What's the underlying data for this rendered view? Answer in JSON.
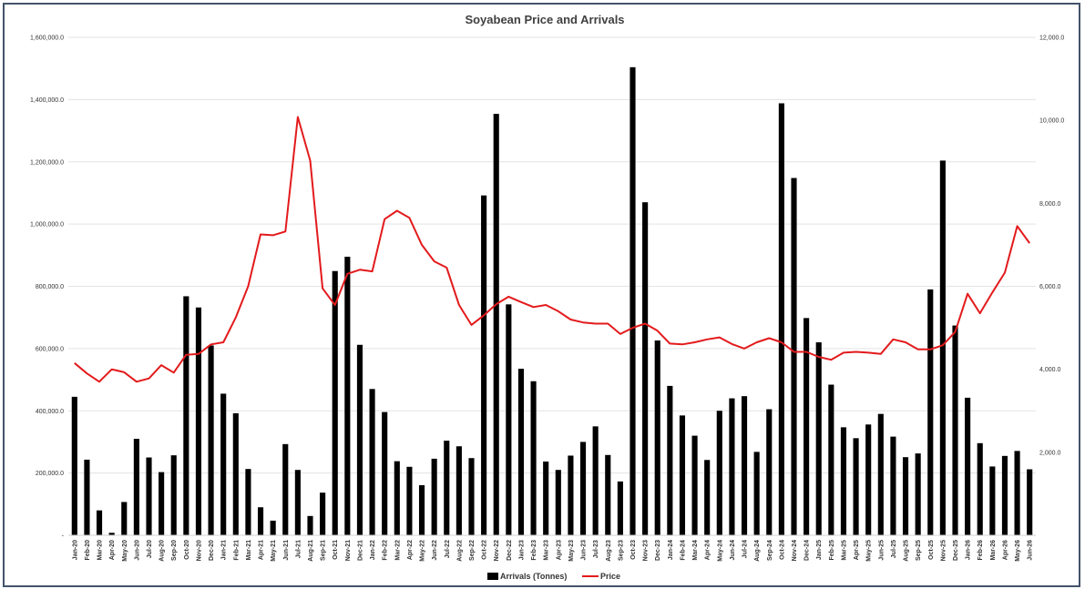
{
  "colors": {
    "bars": "#000000",
    "line": "#e31a1c",
    "grid": "#e3e3e3",
    "border": "#44546a"
  },
  "chart_data": {
    "type": "bar",
    "title": "Soyabean Price and Arrivals",
    "grid": true,
    "legend_position": "bottom",
    "categories": [
      "Jan-20",
      "Feb-20",
      "Mar-20",
      "Apr-20",
      "May-20",
      "Jun-20",
      "Jul-20",
      "Aug-20",
      "Sep-20",
      "Oct-20",
      "Nov-20",
      "Dec-20",
      "Jan-21",
      "Feb-21",
      "Mar-21",
      "Apr-21",
      "May-21",
      "Jun-21",
      "Jul-21",
      "Aug-21",
      "Sep-21",
      "Oct-21",
      "Nov-21",
      "Dec-21",
      "Jan-22",
      "Feb-22",
      "Mar-22",
      "Apr-22",
      "May-22",
      "Jun-22",
      "Jul-22",
      "Aug-22",
      "Sep-22",
      "Oct-22",
      "Nov-22",
      "Dec-22",
      "Jan-23",
      "Feb-23",
      "Mar-23",
      "Apr-23",
      "May-23",
      "Jun-23",
      "Jul-23",
      "Aug-23",
      "Sep-23",
      "Oct-23",
      "Nov-23",
      "Dec-23",
      "Jan-24",
      "Feb-24",
      "Mar-24",
      "Apr-24",
      "May-24",
      "Jun-24",
      "Jul-24",
      "Aug-24",
      "Sep-24",
      "Oct-24",
      "Nov-24",
      "Dec-24",
      "Jan-25",
      "Feb-25",
      "Mar-25",
      "Apr-25",
      "May-25",
      "Jun-25",
      "Jul-25",
      "Aug-25",
      "Sep-25",
      "Oct-25",
      "Nov-25",
      "Dec-25",
      "Jan-26",
      "Feb-26",
      "Mar-26",
      "Apr-26",
      "May-26",
      "Jun-26"
    ],
    "y_left": {
      "min": 0,
      "max": 1600000,
      "ticks": [
        "-",
        "200,000.0",
        "400,000.0",
        "600,000.0",
        "800,000.0",
        "1,000,000.0",
        "1,200,000.0",
        "1,400,000.0",
        "1,600,000.0"
      ]
    },
    "y_right": {
      "min": 0,
      "max": 12000,
      "ticks": [
        "",
        "2,000.0",
        "4,000.0",
        "6,000.0",
        "8,000.0",
        "10,000.0",
        "12,000.0"
      ]
    },
    "series": [
      {
        "name": "Arrivals (Tonnes)",
        "type": "bar",
        "axis": "left",
        "values": [
          445000,
          243000,
          80000,
          8000,
          107000,
          310000,
          250000,
          203000,
          257000,
          768000,
          732000,
          610000,
          455000,
          392000,
          213000,
          90000,
          47000,
          293000,
          210000,
          62000,
          137000,
          849000,
          895000,
          612000,
          470000,
          396000,
          238000,
          220000,
          161000,
          246000,
          304000,
          286000,
          248000,
          1092000,
          1354000,
          742000,
          535000,
          495000,
          237000,
          210000,
          256000,
          300000,
          350000,
          258000,
          173000,
          1504000,
          1070000,
          626000,
          480000,
          385000,
          320000,
          242000,
          400000,
          440000,
          447000,
          268000,
          405000,
          1388000,
          1148000,
          698000,
          620000,
          484000,
          347000,
          312000,
          356000,
          390000,
          317000,
          251000,
          263000,
          790000,
          1204000,
          674000,
          442000,
          296000,
          221000,
          255000,
          271000,
          212000
        ]
      },
      {
        "name": "Price",
        "type": "line",
        "axis": "right",
        "values": [
          4150,
          3900,
          3700,
          4000,
          3930,
          3700,
          3780,
          4100,
          3920,
          4350,
          4370,
          4600,
          4650,
          5250,
          6000,
          7250,
          7230,
          7320,
          10080,
          9030,
          5950,
          5550,
          6300,
          6400,
          6360,
          7620,
          7820,
          7650,
          7000,
          6600,
          6450,
          5550,
          5070,
          5300,
          5570,
          5750,
          5620,
          5500,
          5550,
          5400,
          5200,
          5130,
          5100,
          5100,
          4850,
          5000,
          5100,
          4930,
          4620,
          4600,
          4650,
          4720,
          4770,
          4610,
          4500,
          4650,
          4750,
          4650,
          4420,
          4420,
          4300,
          4230,
          4400,
          4420,
          4400,
          4370,
          4720,
          4650,
          4480,
          4480,
          4580,
          4900,
          5820,
          5350,
          5850,
          6330,
          7450,
          7040
        ]
      }
    ]
  }
}
